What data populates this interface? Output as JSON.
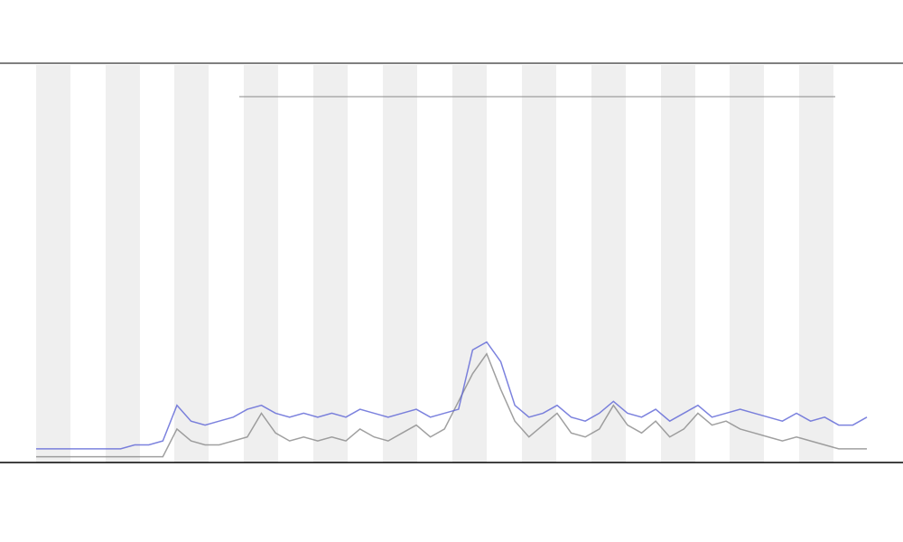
{
  "chart_data": {
    "type": "line",
    "x": [
      0,
      1,
      2,
      3,
      4,
      5,
      6,
      7,
      8,
      9,
      10,
      11,
      12,
      13,
      14,
      15,
      16,
      17,
      18,
      19,
      20,
      21,
      22,
      23,
      24,
      25,
      26,
      27,
      28,
      29,
      30,
      31,
      32,
      33,
      34,
      35,
      36,
      37,
      38,
      39,
      40,
      41,
      42,
      43,
      44,
      45,
      46,
      47,
      48,
      49,
      50,
      51,
      52,
      53,
      54,
      55,
      56,
      57,
      58,
      59
    ],
    "xlim": [
      0,
      59
    ],
    "ylim": [
      0,
      100
    ],
    "series": [
      {
        "color": "#888888",
        "values": [
          1,
          1,
          1,
          1,
          1,
          1,
          1,
          1,
          1,
          1,
          8,
          5,
          4,
          4,
          5,
          6,
          12,
          7,
          5,
          6,
          5,
          6,
          5,
          8,
          6,
          5,
          7,
          9,
          6,
          8,
          15,
          22,
          27,
          18,
          10,
          6,
          9,
          12,
          7,
          6,
          8,
          14,
          9,
          7,
          10,
          6,
          8,
          12,
          9,
          10,
          8,
          7,
          6,
          5,
          6,
          5,
          4,
          3,
          3,
          3
        ]
      },
      {
        "color": "#5b63d6",
        "values": [
          3,
          3,
          3,
          3,
          3,
          3,
          3,
          4,
          4,
          5,
          14,
          10,
          9,
          10,
          11,
          13,
          14,
          12,
          11,
          12,
          11,
          12,
          11,
          13,
          12,
          11,
          12,
          13,
          11,
          12,
          13,
          28,
          30,
          25,
          14,
          11,
          12,
          14,
          11,
          10,
          12,
          15,
          12,
          11,
          13,
          10,
          12,
          14,
          11,
          12,
          13,
          12,
          11,
          10,
          12,
          10,
          11,
          9,
          9,
          11
        ]
      }
    ]
  }
}
